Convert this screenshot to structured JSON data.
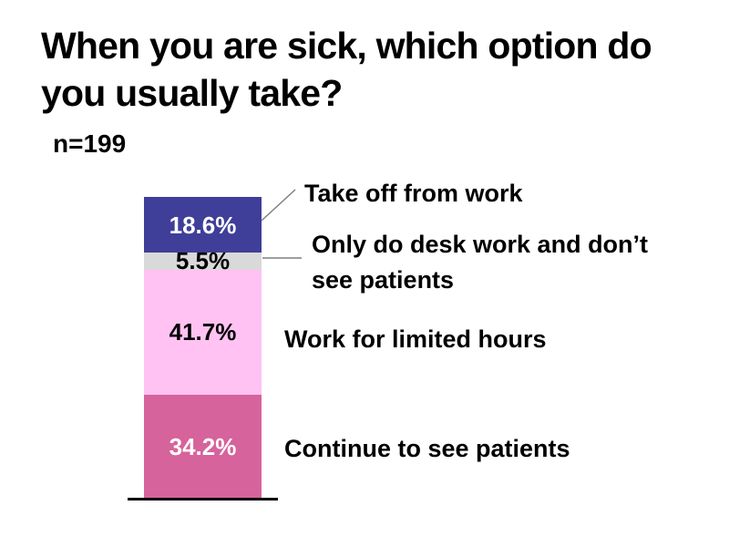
{
  "header": {
    "title": "When you are sick, which option do\nyou usually take?",
    "sample_size": "n=199"
  },
  "chart_data": {
    "type": "bar",
    "stacked": true,
    "orientation": "vertical",
    "title": "When you are sick, which option do you usually take?",
    "sample_label": "n=199",
    "total": 100,
    "ylim": [
      0,
      100
    ],
    "grid": false,
    "legend_position": "right-callouts",
    "segments": [
      {
        "label": "Take off from work",
        "value": 18.6,
        "display": "18.6%",
        "color": "#3F3F99",
        "text_color": "#FFFFFF"
      },
      {
        "label": "Only do desk work and don’t see patients",
        "value": 5.5,
        "display": "5.5%",
        "color": "#D9D9D9",
        "text_color": "#000000"
      },
      {
        "label": "Work for limited hours",
        "value": 41.7,
        "display": "41.7%",
        "color": "#FFC2F3",
        "text_color": "#000000"
      },
      {
        "label": "Continue to see patients",
        "value": 34.2,
        "display": "34.2%",
        "color": "#D6639B",
        "text_color": "#FFFFFF"
      }
    ]
  },
  "callouts": {
    "take_off": "Take off from work",
    "desk_work": "Only do desk work and don’t\nsee patients",
    "limited_hours": "Work for limited hours",
    "continue_patients": "Continue to see patients"
  },
  "style": {
    "leader_line_color": "#7F7F7F",
    "baseline_color": "#000000",
    "background": "#FFFFFF"
  }
}
